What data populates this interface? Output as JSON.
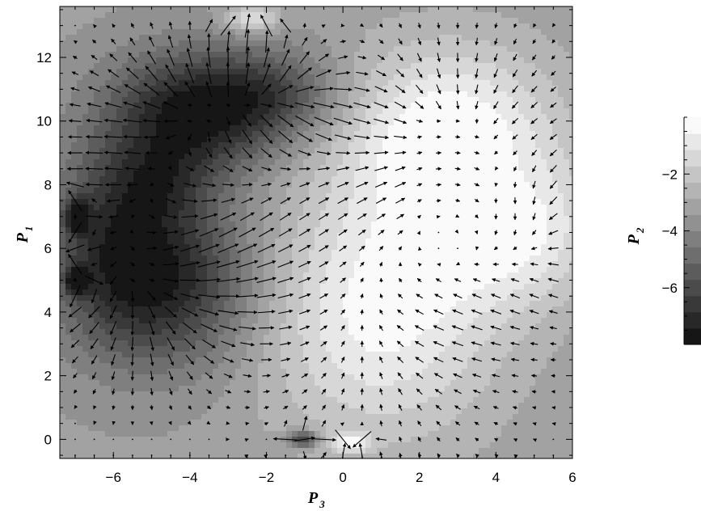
{
  "chart_data": {
    "type": "heatmap",
    "overlay": "vector field (quiver)",
    "colormap": "grayscale, dark = low, light = high",
    "x": {
      "label_base": "P",
      "label_sub": "3",
      "range": [
        -7.4,
        6.0
      ],
      "ticks": [
        "−6",
        "−4",
        "−2",
        "0",
        "2",
        "4",
        "6"
      ],
      "tick_values": [
        -6,
        -4,
        -2,
        0,
        2,
        4,
        6
      ]
    },
    "y": {
      "label_base": "P",
      "label_sub": "1",
      "range": [
        -0.6,
        13.6
      ],
      "ticks": [
        "0",
        "2",
        "4",
        "6",
        "8",
        "10",
        "12"
      ],
      "tick_values": [
        0,
        2,
        4,
        6,
        8,
        10,
        12
      ]
    },
    "colorbar": {
      "label_base": "P",
      "label_sub": "2",
      "range": [
        -8.0,
        0.0
      ],
      "ticks": [
        "−2",
        "−4",
        "−6"
      ],
      "tick_values": [
        -2,
        -4,
        -6
      ],
      "levels": 14
    },
    "background_value": -3.3,
    "field_bumps": [
      {
        "cx": 2.8,
        "cy": 9.5,
        "sx": 2.0,
        "sy": 2.0,
        "amp": 3.4
      },
      {
        "cx": 1.0,
        "cy": 4.0,
        "sx": 2.2,
        "sy": 2.8,
        "amp": 3.0
      },
      {
        "cx": 4.2,
        "cy": 5.8,
        "sx": 1.5,
        "sy": 1.4,
        "amp": 1.6
      },
      {
        "cx": 5.5,
        "cy": 7.0,
        "sx": 0.8,
        "sy": 1.4,
        "amp": 1.0
      },
      {
        "cx": -4.0,
        "cy": 10.2,
        "sx": 1.5,
        "sy": 1.4,
        "amp": -4.2
      },
      {
        "cx": -1.8,
        "cy": 10.8,
        "sx": 1.3,
        "sy": 1.0,
        "amp": -2.5
      },
      {
        "cx": -4.6,
        "cy": 5.0,
        "sx": 1.6,
        "sy": 1.9,
        "amp": -4.0
      },
      {
        "cx": -6.2,
        "cy": 6.5,
        "sx": 1.1,
        "sy": 2.2,
        "amp": -2.2
      },
      {
        "cx": -4.8,
        "cy": 8.0,
        "sx": 0.9,
        "sy": 0.9,
        "amp": -1.5
      },
      {
        "cx": -6.95,
        "cy": 7.0,
        "sx": 0.2,
        "sy": 0.35,
        "amp": -3.8
      },
      {
        "cx": -6.95,
        "cy": 5.0,
        "sx": 0.2,
        "sy": 0.3,
        "amp": -3.8
      },
      {
        "cx": -1.05,
        "cy": 0.0,
        "sx": 0.3,
        "sy": 0.18,
        "amp": -3.5
      },
      {
        "cx": 0.2,
        "cy": -0.1,
        "sx": 0.35,
        "sy": 0.2,
        "amp": 2.6
      },
      {
        "cx": -2.4,
        "cy": 13.2,
        "sx": 0.5,
        "sy": 0.3,
        "amp": 2.5
      }
    ],
    "vector_rotations": [
      {
        "cx": -4.2,
        "cy": 7.2,
        "r": 3.0,
        "strength": 0.55
      },
      {
        "cx": 2.6,
        "cy": 6.2,
        "r": 3.3,
        "strength": -0.5
      }
    ],
    "grid_on": false
  }
}
